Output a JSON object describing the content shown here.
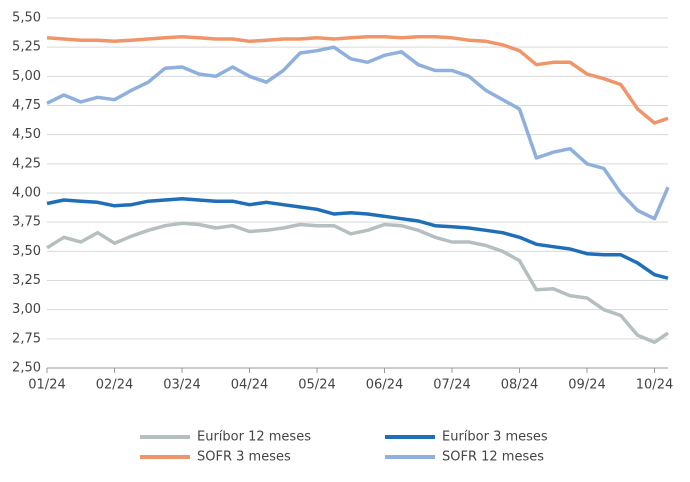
{
  "chart_data": {
    "type": "line",
    "x": [
      0,
      0.25,
      0.5,
      0.75,
      1,
      1.25,
      1.5,
      1.75,
      2,
      2.25,
      2.5,
      2.75,
      3,
      3.25,
      3.5,
      3.75,
      4,
      4.25,
      4.5,
      4.75,
      5,
      5.25,
      5.5,
      5.75,
      6,
      6.25,
      6.5,
      6.75,
      7,
      7.25,
      7.5,
      7.75,
      8,
      8.25,
      8.5,
      8.75,
      9,
      9.2
    ],
    "xlim": [
      0,
      9.2
    ],
    "xticks": [
      {
        "value": 0,
        "label": "01/24"
      },
      {
        "value": 1,
        "label": "02/24"
      },
      {
        "value": 2,
        "label": "03/24"
      },
      {
        "value": 3,
        "label": "04/24"
      },
      {
        "value": 4,
        "label": "05/24"
      },
      {
        "value": 5,
        "label": "06/24"
      },
      {
        "value": 6,
        "label": "07/24"
      },
      {
        "value": 7,
        "label": "08/24"
      },
      {
        "value": 8,
        "label": "09/24"
      },
      {
        "value": 9,
        "label": "10/24"
      }
    ],
    "ylim": [
      2.5,
      5.5
    ],
    "yticks": [
      {
        "value": 2.5,
        "label": "2,50"
      },
      {
        "value": 2.75,
        "label": "2,75"
      },
      {
        "value": 3,
        "label": "3,00"
      },
      {
        "value": 3.25,
        "label": "3,25"
      },
      {
        "value": 3.5,
        "label": "3,50"
      },
      {
        "value": 3.75,
        "label": "3,75"
      },
      {
        "value": 4,
        "label": "4,00"
      },
      {
        "value": 4.25,
        "label": "4,25"
      },
      {
        "value": 4.5,
        "label": "4,50"
      },
      {
        "value": 4.75,
        "label": "4,75"
      },
      {
        "value": 5,
        "label": "5,00"
      },
      {
        "value": 5.25,
        "label": "5,25"
      },
      {
        "value": 5.5,
        "label": "5,50"
      }
    ],
    "grid": true,
    "series": [
      {
        "name": "Euríbor 12 meses",
        "color": "#b5bfc0",
        "values": [
          3.53,
          3.62,
          3.58,
          3.66,
          3.57,
          3.63,
          3.68,
          3.72,
          3.74,
          3.73,
          3.7,
          3.72,
          3.67,
          3.68,
          3.7,
          3.73,
          3.72,
          3.72,
          3.65,
          3.68,
          3.73,
          3.72,
          3.68,
          3.62,
          3.58,
          3.58,
          3.55,
          3.5,
          3.42,
          3.17,
          3.18,
          3.12,
          3.1,
          3.0,
          2.95,
          2.78,
          2.72,
          2.8
        ]
      },
      {
        "name": "Euríbor 3 meses",
        "color": "#1f6fb8",
        "values": [
          3.91,
          3.94,
          3.93,
          3.92,
          3.89,
          3.9,
          3.93,
          3.94,
          3.95,
          3.94,
          3.93,
          3.93,
          3.9,
          3.92,
          3.9,
          3.88,
          3.86,
          3.82,
          3.83,
          3.82,
          3.8,
          3.78,
          3.76,
          3.72,
          3.71,
          3.7,
          3.68,
          3.66,
          3.62,
          3.56,
          3.54,
          3.52,
          3.48,
          3.47,
          3.47,
          3.4,
          3.3,
          3.27
        ]
      },
      {
        "name": "SOFR 3 meses",
        "color": "#f0956a",
        "values": [
          5.33,
          5.32,
          5.31,
          5.31,
          5.3,
          5.31,
          5.32,
          5.33,
          5.34,
          5.33,
          5.32,
          5.32,
          5.3,
          5.31,
          5.32,
          5.32,
          5.33,
          5.32,
          5.33,
          5.34,
          5.34,
          5.33,
          5.34,
          5.34,
          5.33,
          5.31,
          5.3,
          5.27,
          5.22,
          5.1,
          5.12,
          5.12,
          5.02,
          4.98,
          4.93,
          4.72,
          4.6,
          4.64
        ]
      },
      {
        "name": "SOFR 12 meses",
        "color": "#8fb0dc",
        "values": [
          4.77,
          4.84,
          4.78,
          4.82,
          4.8,
          4.88,
          4.95,
          5.07,
          5.08,
          5.02,
          5.0,
          5.08,
          5.0,
          4.95,
          5.05,
          5.2,
          5.22,
          5.25,
          5.15,
          5.12,
          5.18,
          5.21,
          5.1,
          5.05,
          5.05,
          5.0,
          4.88,
          4.8,
          4.72,
          4.3,
          4.35,
          4.38,
          4.25,
          4.21,
          4.0,
          3.85,
          3.78,
          4.05
        ]
      }
    ]
  }
}
